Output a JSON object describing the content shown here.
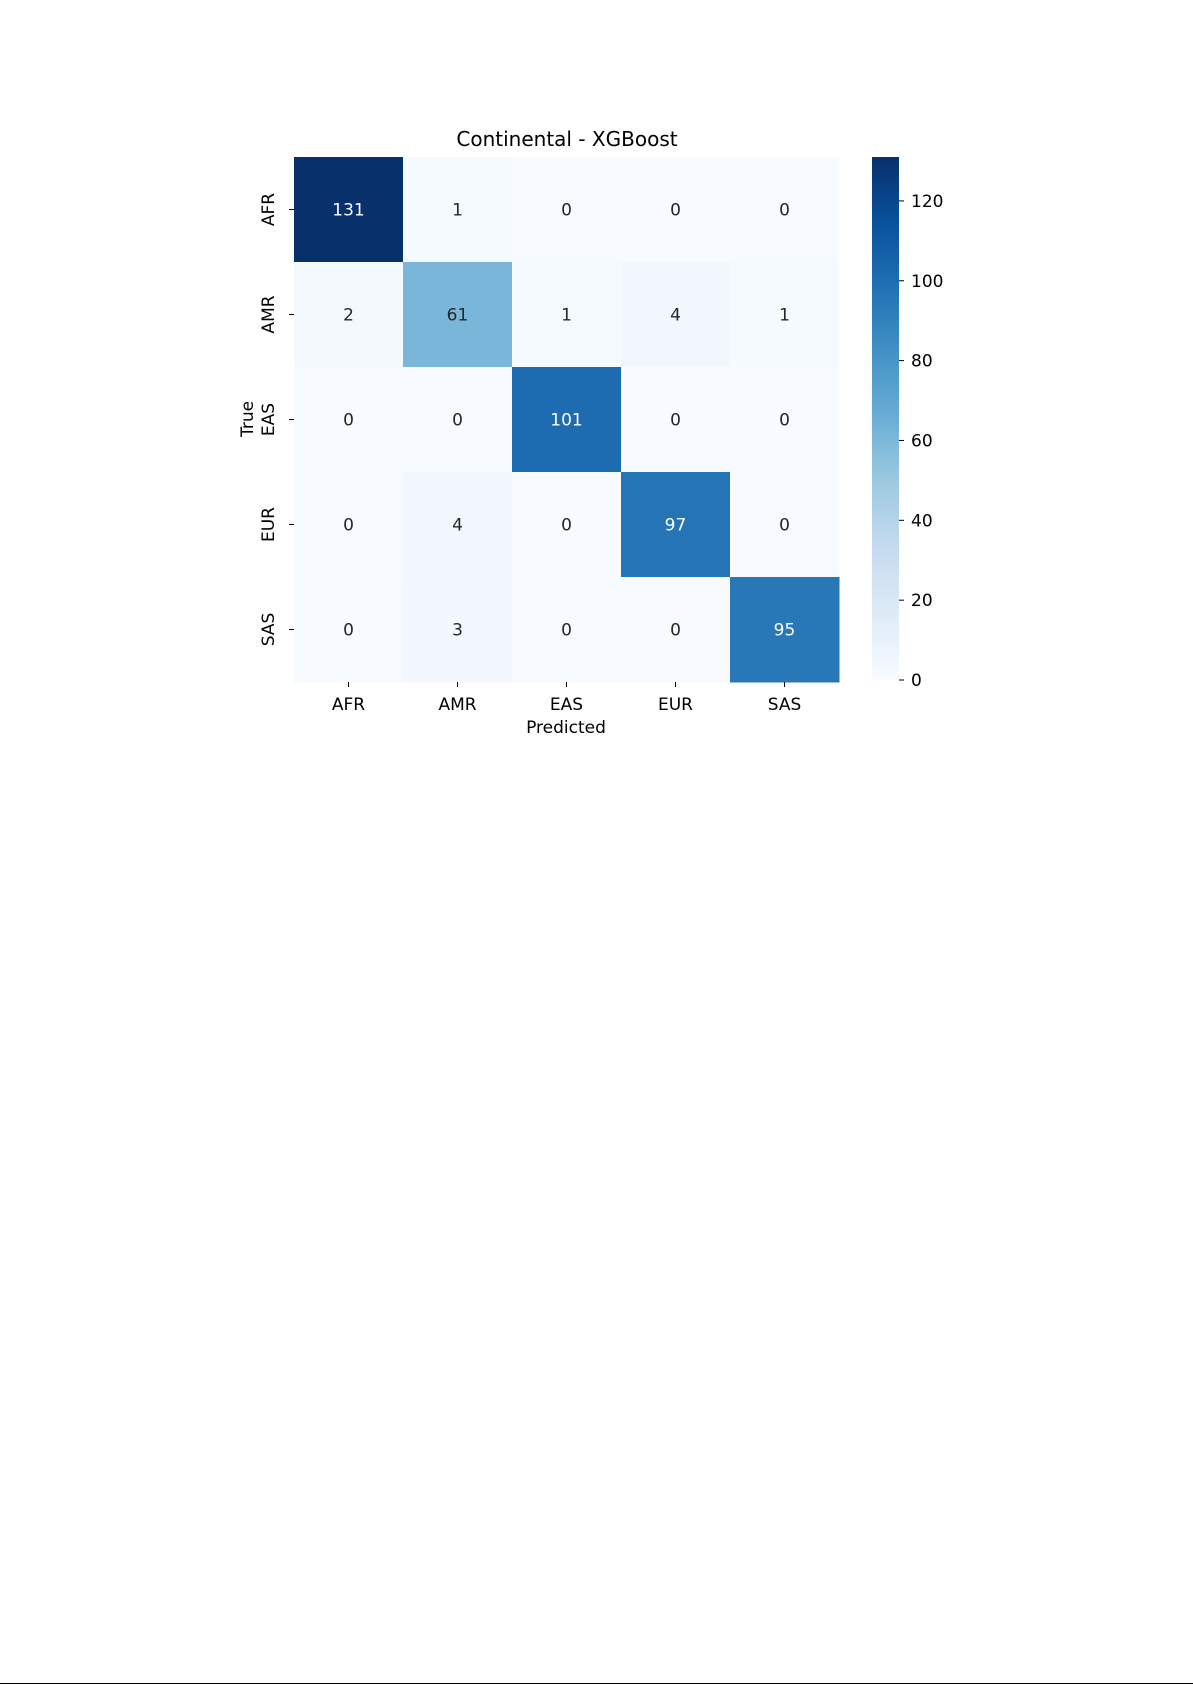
{
  "chart_data": {
    "type": "heatmap",
    "title": "Continental - XGBoost",
    "xlabel": "Predicted",
    "ylabel": "True",
    "x_categories": [
      "AFR",
      "AMR",
      "EAS",
      "EUR",
      "SAS"
    ],
    "y_categories": [
      "AFR",
      "AMR",
      "EAS",
      "EUR",
      "SAS"
    ],
    "values": [
      [
        131,
        1,
        0,
        0,
        0
      ],
      [
        2,
        61,
        1,
        4,
        1
      ],
      [
        0,
        0,
        101,
        0,
        0
      ],
      [
        0,
        4,
        0,
        97,
        0
      ],
      [
        0,
        3,
        0,
        0,
        95
      ]
    ],
    "colormap": "Blues",
    "vmin": 0,
    "vmax": 131,
    "colorbar_ticks": [
      0,
      20,
      40,
      60,
      80,
      100,
      120
    ],
    "colors": {
      "low": "#f7fbff",
      "high": "#08306b",
      "text_dark": "#262626",
      "text_light": "#ffffff"
    }
  }
}
